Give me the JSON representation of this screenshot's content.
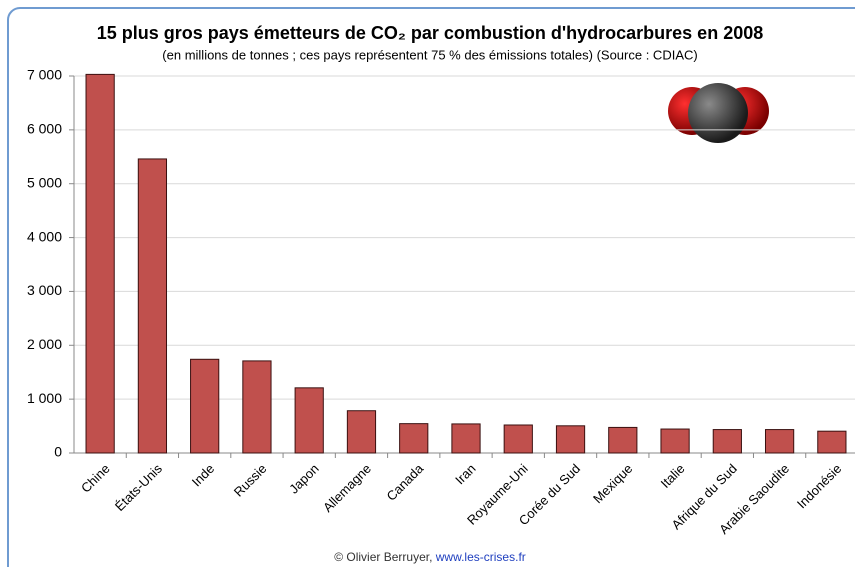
{
  "chart_data": {
    "type": "bar",
    "title": "15 plus gros pays émetteurs de CO₂ par combustion d'hydrocarbures en 2008",
    "subtitle": "(en millions de tonnes ; ces pays représentent 75 % des émissions totales) (Source : CDIAC)",
    "categories": [
      "Chine",
      "États-Unis",
      "Inde",
      "Russie",
      "Japon",
      "Allemagne",
      "Canada",
      "Iran",
      "Royaume-Uni",
      "Corée du Sud",
      "Mexique",
      "Italie",
      "Afrique du Sud",
      "Arabie Saoudite",
      "Indonésie"
    ],
    "values": [
      7030,
      5460,
      1740,
      1710,
      1210,
      785,
      545,
      540,
      520,
      505,
      475,
      445,
      435,
      435,
      405
    ],
    "color": "#c0504d",
    "ylim": [
      0,
      7000
    ],
    "yticks": [
      0,
      {
        "value": 1000,
        "label": "1 000"
      },
      {
        "value": 2000,
        "label": "2 000"
      },
      {
        "value": 3000,
        "label": "3 000"
      },
      {
        "value": 4000,
        "label": "4 000"
      },
      {
        "value": 5000,
        "label": "5 000"
      },
      {
        "value": 6000,
        "label": "6 000"
      },
      {
        "value": 7000,
        "label": "7 000"
      }
    ],
    "grid": true,
    "credit": "© Olivier Berruyer,",
    "credit_link": "www.les-crises.fr"
  }
}
